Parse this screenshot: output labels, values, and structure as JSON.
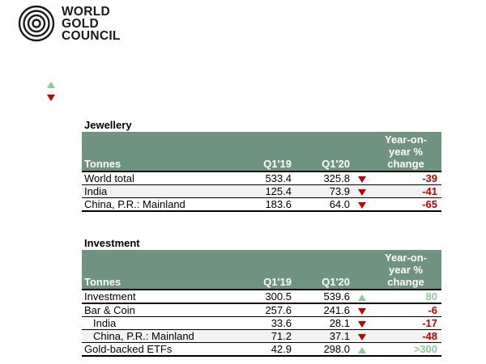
{
  "logo": {
    "lines": [
      "WORLD",
      "GOLD",
      "COUNCIL"
    ]
  },
  "legend": {
    "up_icon": "up-arrow-icon",
    "down_icon": "down-arrow-icon",
    "up_color": "#8fca9a",
    "down_color": "#c00000"
  },
  "jewellery": {
    "title": "Jewellery",
    "header": {
      "label": "Tonnes",
      "q19": "Q1'19",
      "q20": "Q1'20",
      "change": [
        "Year-on-",
        "year %",
        "change"
      ]
    },
    "rows": [
      {
        "label": "World total",
        "q19": "533.4",
        "q20": "325.8",
        "trend": "down",
        "change": "-39"
      },
      {
        "label": "India",
        "q19": "125.4",
        "q20": "73.9",
        "trend": "down",
        "change": "-41"
      },
      {
        "label": "China, P.R.: Mainland",
        "q19": "183.6",
        "q20": "64.0",
        "trend": "down",
        "change": "-65"
      }
    ]
  },
  "investment": {
    "title": "Investment",
    "header": {
      "label": "Tonnes",
      "q19": "Q1'19",
      "q20": "Q1'20",
      "change": [
        "Year-on-",
        "year %",
        "change"
      ]
    },
    "rows": [
      {
        "label": "Investment",
        "q19": "300.5",
        "q20": "539.6",
        "trend": "up",
        "change": "80"
      },
      {
        "label": "Bar & Coin",
        "q19": "257.6",
        "q20": "241.6",
        "trend": "down",
        "change": "-6"
      },
      {
        "label": "India",
        "q19": "33.6",
        "q20": "28.1",
        "trend": "down",
        "change": "-17"
      },
      {
        "label": "China, P.R.: Mainland",
        "q19": "71.2",
        "q20": "37.1",
        "trend": "down",
        "change": "-48"
      },
      {
        "label": "Gold-backed ETFs",
        "q19": "42.9",
        "q20": "298.0",
        "trend": "up",
        "change": ">300"
      }
    ]
  }
}
